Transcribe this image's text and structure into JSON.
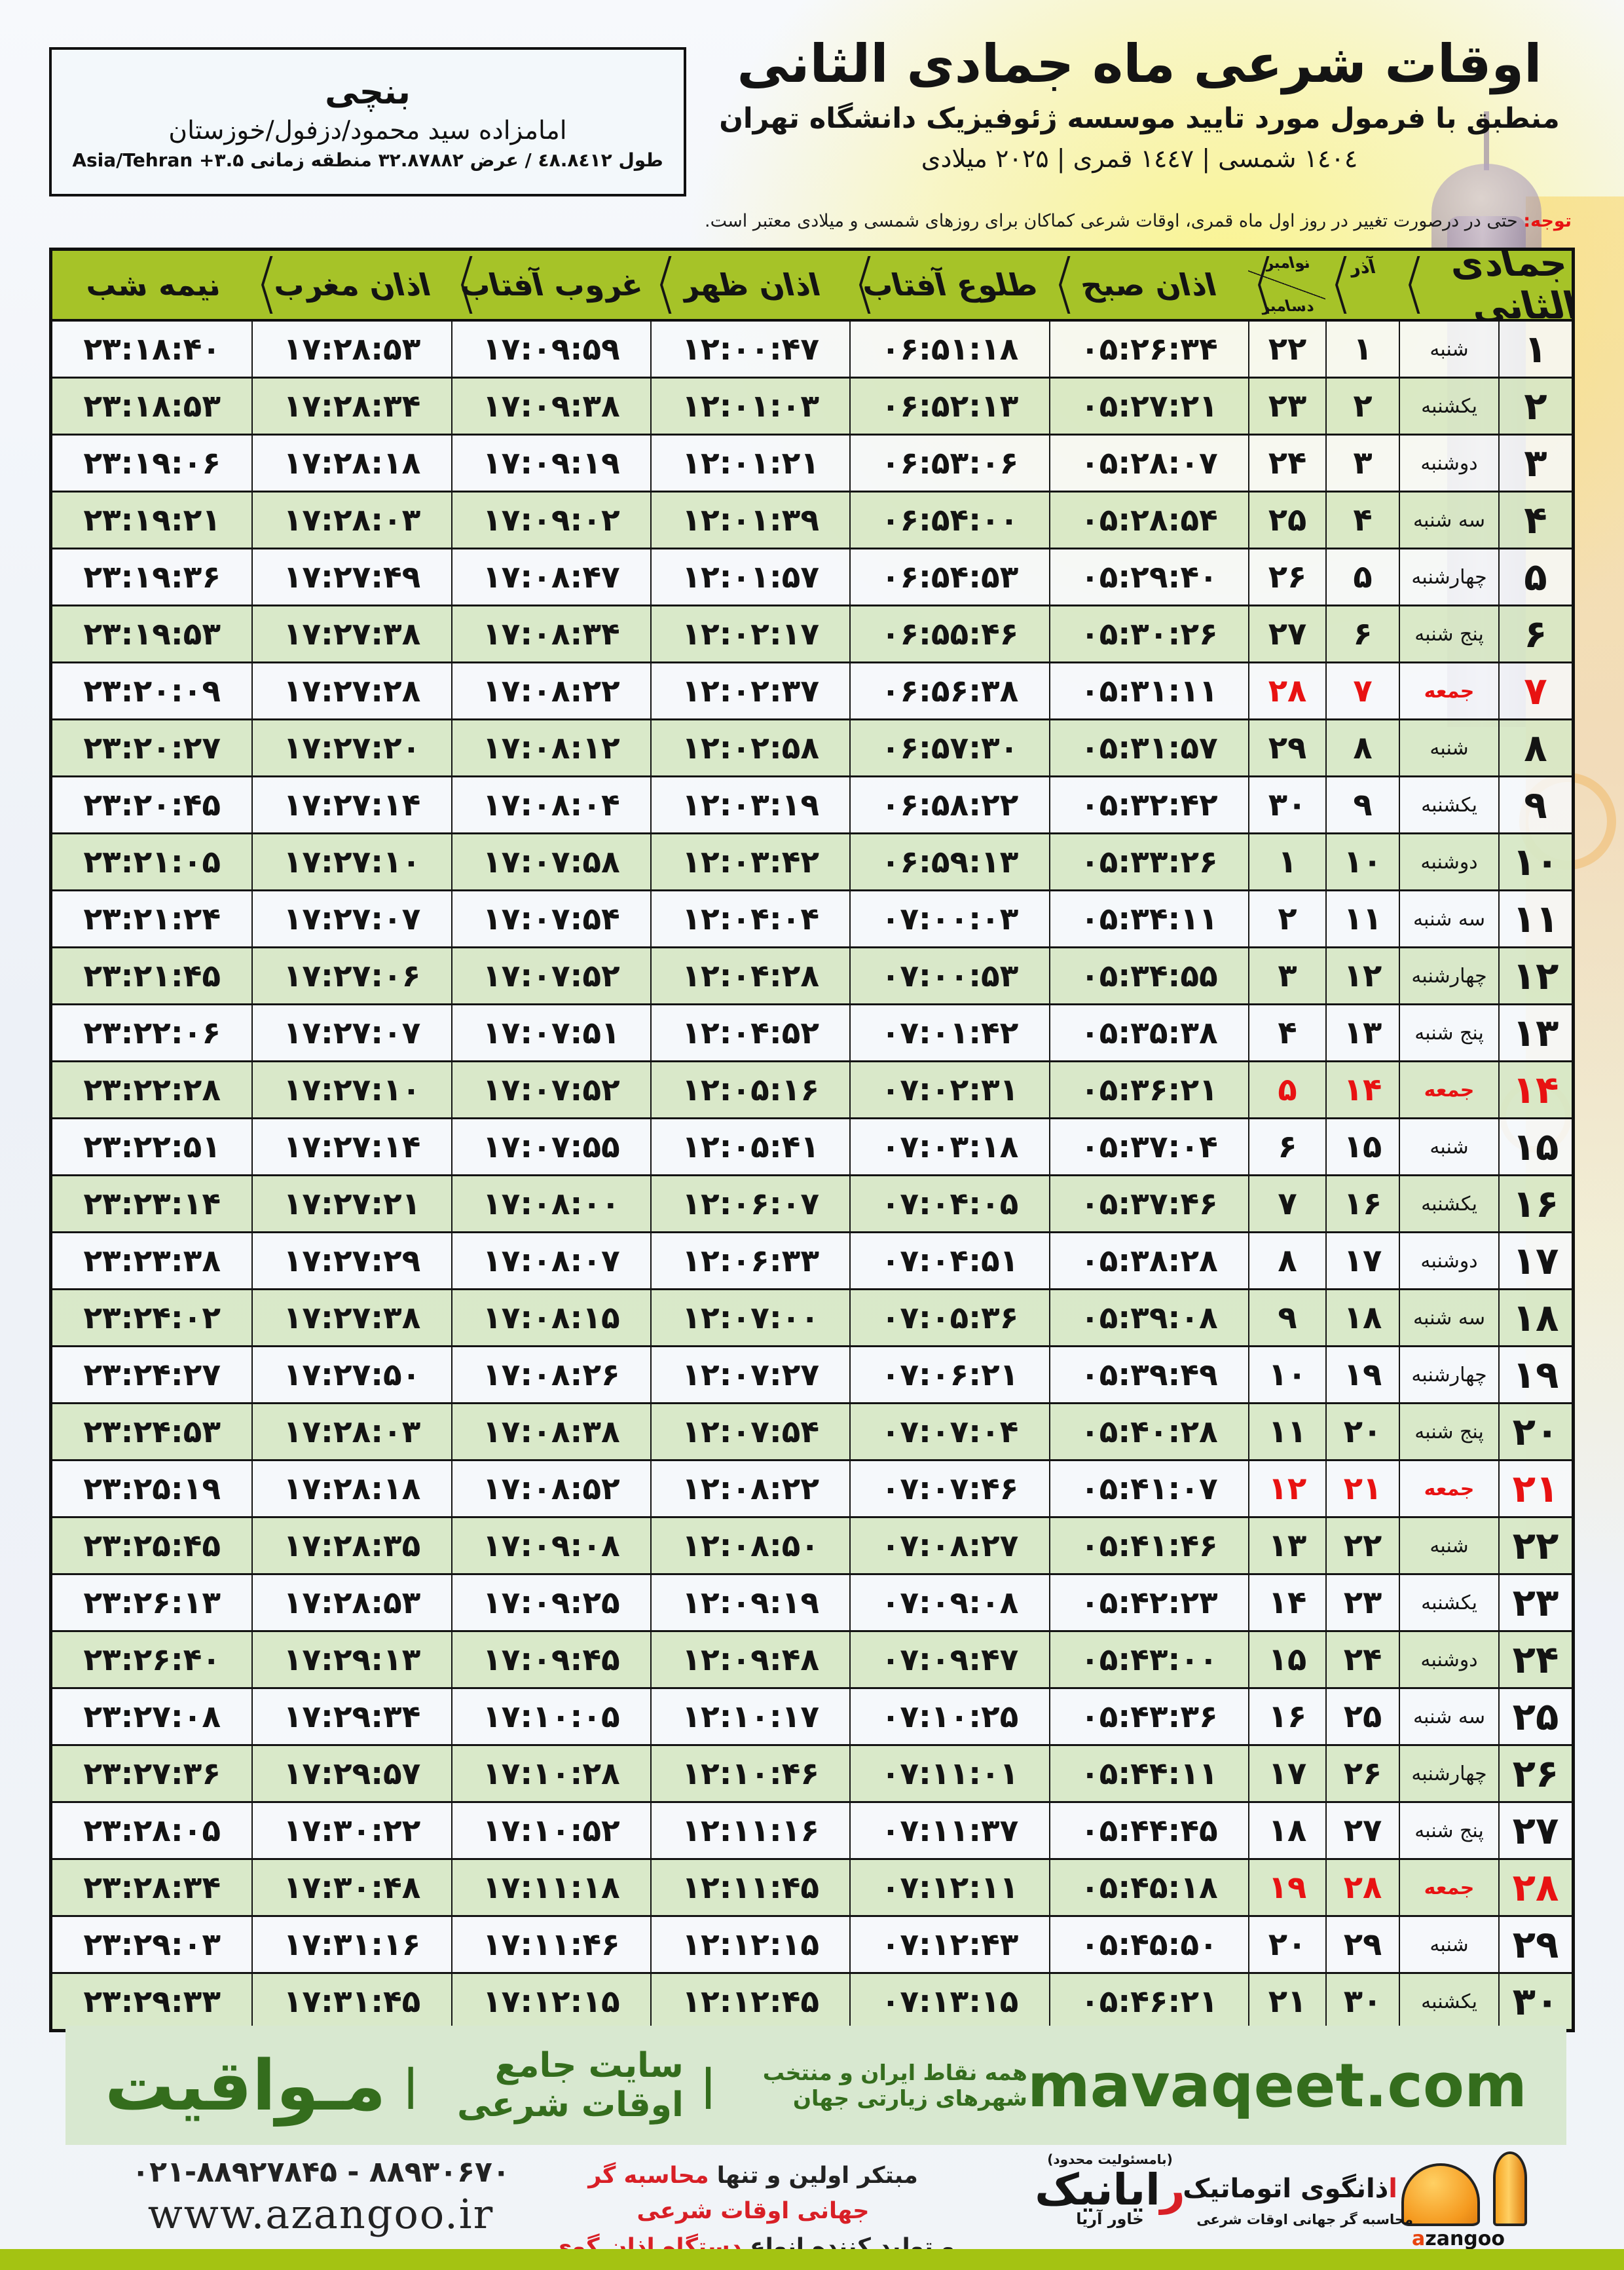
{
  "header": {
    "title": "اوقات شرعی ماه جمادی الثانی",
    "subtitle": "منطبق با فرمول مورد تایید موسسه ژئوفیزیک دانشگاه تهران",
    "years": "١٤٠٤ شمسی | ١٤٤٧ قمری | ۲۰۲۵ میلادی",
    "location": {
      "name": "بنچی",
      "shrine": "امامزاده سید محمود/دزفول/خوزستان",
      "coords_rtl": "طول ٤٨.٨٤١٢ / عرض ۳۲.۸۷۸۸۲ منطقه زمانی",
      "coords_ltr": "Asia/Tehran +۳.۵"
    }
  },
  "notice": {
    "label": "توجه:",
    "text": " حتی در درصورت تغییر در روز اول ماه قمری، اوقات شرعی کماکان برای روزهای شمسی و میلادی معتبر است."
  },
  "table": {
    "headers": {
      "month": "جمادی الثانی",
      "azar": "آذر",
      "nov": "نوامبر",
      "dec": "دسامبر",
      "fajr": "اذان صبح",
      "sunrise": "طلوع آفتاب",
      "dhuhr": "اذان ظهر",
      "sunset": "غروب آفتاب",
      "maghrib": "اذان مغرب",
      "midnight": "نیمه شب"
    },
    "rows": [
      {
        "day": "۱",
        "weekday": "شنبه",
        "azar": "۱",
        "nov": "۲۲",
        "fajr": "۰۵:۲۶:۳۴",
        "sunrise": "۰۶:۵۱:۱۸",
        "dhuhr": "۱۲:۰۰:۴۷",
        "sunset": "۱۷:۰۹:۵۹",
        "maghrib": "۱۷:۲۸:۵۳",
        "midnight": "۲۳:۱۸:۴۰",
        "friday": false
      },
      {
        "day": "۲",
        "weekday": "یکشنبه",
        "azar": "۲",
        "nov": "۲۳",
        "fajr": "۰۵:۲۷:۲۱",
        "sunrise": "۰۶:۵۲:۱۳",
        "dhuhr": "۱۲:۰۱:۰۳",
        "sunset": "۱۷:۰۹:۳۸",
        "maghrib": "۱۷:۲۸:۳۴",
        "midnight": "۲۳:۱۸:۵۳",
        "friday": false
      },
      {
        "day": "۳",
        "weekday": "دوشنبه",
        "azar": "۳",
        "nov": "۲۴",
        "fajr": "۰۵:۲۸:۰۷",
        "sunrise": "۰۶:۵۳:۰۶",
        "dhuhr": "۱۲:۰۱:۲۱",
        "sunset": "۱۷:۰۹:۱۹",
        "maghrib": "۱۷:۲۸:۱۸",
        "midnight": "۲۳:۱۹:۰۶",
        "friday": false
      },
      {
        "day": "۴",
        "weekday": "سه شنبه",
        "azar": "۴",
        "nov": "۲۵",
        "fajr": "۰۵:۲۸:۵۴",
        "sunrise": "۰۶:۵۴:۰۰",
        "dhuhr": "۱۲:۰۱:۳۹",
        "sunset": "۱۷:۰۹:۰۲",
        "maghrib": "۱۷:۲۸:۰۳",
        "midnight": "۲۳:۱۹:۲۱",
        "friday": false
      },
      {
        "day": "۵",
        "weekday": "چهارشنبه",
        "azar": "۵",
        "nov": "۲۶",
        "fajr": "۰۵:۲۹:۴۰",
        "sunrise": "۰۶:۵۴:۵۳",
        "dhuhr": "۱۲:۰۱:۵۷",
        "sunset": "۱۷:۰۸:۴۷",
        "maghrib": "۱۷:۲۷:۴۹",
        "midnight": "۲۳:۱۹:۳۶",
        "friday": false
      },
      {
        "day": "۶",
        "weekday": "پنج شنبه",
        "azar": "۶",
        "nov": "۲۷",
        "fajr": "۰۵:۳۰:۲۶",
        "sunrise": "۰۶:۵۵:۴۶",
        "dhuhr": "۱۲:۰۲:۱۷",
        "sunset": "۱۷:۰۸:۳۴",
        "maghrib": "۱۷:۲۷:۳۸",
        "midnight": "۲۳:۱۹:۵۳",
        "friday": false
      },
      {
        "day": "۷",
        "weekday": "جمعه",
        "azar": "۷",
        "nov": "۲۸",
        "fajr": "۰۵:۳۱:۱۱",
        "sunrise": "۰۶:۵۶:۳۸",
        "dhuhr": "۱۲:۰۲:۳۷",
        "sunset": "۱۷:۰۸:۲۲",
        "maghrib": "۱۷:۲۷:۲۸",
        "midnight": "۲۳:۲۰:۰۹",
        "friday": true
      },
      {
        "day": "۸",
        "weekday": "شنبه",
        "azar": "۸",
        "nov": "۲۹",
        "fajr": "۰۵:۳۱:۵۷",
        "sunrise": "۰۶:۵۷:۳۰",
        "dhuhr": "۱۲:۰۲:۵۸",
        "sunset": "۱۷:۰۸:۱۲",
        "maghrib": "۱۷:۲۷:۲۰",
        "midnight": "۲۳:۲۰:۲۷",
        "friday": false
      },
      {
        "day": "۹",
        "weekday": "یکشنبه",
        "azar": "۹",
        "nov": "۳۰",
        "fajr": "۰۵:۳۲:۴۲",
        "sunrise": "۰۶:۵۸:۲۲",
        "dhuhr": "۱۲:۰۳:۱۹",
        "sunset": "۱۷:۰۸:۰۴",
        "maghrib": "۱۷:۲۷:۱۴",
        "midnight": "۲۳:۲۰:۴۵",
        "friday": false
      },
      {
        "day": "۱۰",
        "weekday": "دوشنبه",
        "azar": "۱۰",
        "nov": "۱",
        "fajr": "۰۵:۳۳:۲۶",
        "sunrise": "۰۶:۵۹:۱۳",
        "dhuhr": "۱۲:۰۳:۴۲",
        "sunset": "۱۷:۰۷:۵۸",
        "maghrib": "۱۷:۲۷:۱۰",
        "midnight": "۲۳:۲۱:۰۵",
        "friday": false
      },
      {
        "day": "۱۱",
        "weekday": "سه شنبه",
        "azar": "۱۱",
        "nov": "۲",
        "fajr": "۰۵:۳۴:۱۱",
        "sunrise": "۰۷:۰۰:۰۳",
        "dhuhr": "۱۲:۰۴:۰۴",
        "sunset": "۱۷:۰۷:۵۴",
        "maghrib": "۱۷:۲۷:۰۷",
        "midnight": "۲۳:۲۱:۲۴",
        "friday": false
      },
      {
        "day": "۱۲",
        "weekday": "چهارشنبه",
        "azar": "۱۲",
        "nov": "۳",
        "fajr": "۰۵:۳۴:۵۵",
        "sunrise": "۰۷:۰۰:۵۳",
        "dhuhr": "۱۲:۰۴:۲۸",
        "sunset": "۱۷:۰۷:۵۲",
        "maghrib": "۱۷:۲۷:۰۶",
        "midnight": "۲۳:۲۱:۴۵",
        "friday": false
      },
      {
        "day": "۱۳",
        "weekday": "پنج شنبه",
        "azar": "۱۳",
        "nov": "۴",
        "fajr": "۰۵:۳۵:۳۸",
        "sunrise": "۰۷:۰۱:۴۲",
        "dhuhr": "۱۲:۰۴:۵۲",
        "sunset": "۱۷:۰۷:۵۱",
        "maghrib": "۱۷:۲۷:۰۷",
        "midnight": "۲۳:۲۲:۰۶",
        "friday": false
      },
      {
        "day": "۱۴",
        "weekday": "جمعه",
        "azar": "۱۴",
        "nov": "۵",
        "fajr": "۰۵:۳۶:۲۱",
        "sunrise": "۰۷:۰۲:۳۱",
        "dhuhr": "۱۲:۰۵:۱۶",
        "sunset": "۱۷:۰۷:۵۲",
        "maghrib": "۱۷:۲۷:۱۰",
        "midnight": "۲۳:۲۲:۲۸",
        "friday": true
      },
      {
        "day": "۱۵",
        "weekday": "شنبه",
        "azar": "۱۵",
        "nov": "۶",
        "fajr": "۰۵:۳۷:۰۴",
        "sunrise": "۰۷:۰۳:۱۸",
        "dhuhr": "۱۲:۰۵:۴۱",
        "sunset": "۱۷:۰۷:۵۵",
        "maghrib": "۱۷:۲۷:۱۴",
        "midnight": "۲۳:۲۲:۵۱",
        "friday": false
      },
      {
        "day": "۱۶",
        "weekday": "یکشنبه",
        "azar": "۱۶",
        "nov": "۷",
        "fajr": "۰۵:۳۷:۴۶",
        "sunrise": "۰۷:۰۴:۰۵",
        "dhuhr": "۱۲:۰۶:۰۷",
        "sunset": "۱۷:۰۸:۰۰",
        "maghrib": "۱۷:۲۷:۲۱",
        "midnight": "۲۳:۲۳:۱۴",
        "friday": false
      },
      {
        "day": "۱۷",
        "weekday": "دوشنبه",
        "azar": "۱۷",
        "nov": "۸",
        "fajr": "۰۵:۳۸:۲۸",
        "sunrise": "۰۷:۰۴:۵۱",
        "dhuhr": "۱۲:۰۶:۳۳",
        "sunset": "۱۷:۰۸:۰۷",
        "maghrib": "۱۷:۲۷:۲۹",
        "midnight": "۲۳:۲۳:۳۸",
        "friday": false
      },
      {
        "day": "۱۸",
        "weekday": "سه شنبه",
        "azar": "۱۸",
        "nov": "۹",
        "fajr": "۰۵:۳۹:۰۸",
        "sunrise": "۰۷:۰۵:۳۶",
        "dhuhr": "۱۲:۰۷:۰۰",
        "sunset": "۱۷:۰۸:۱۵",
        "maghrib": "۱۷:۲۷:۳۸",
        "midnight": "۲۳:۲۴:۰۲",
        "friday": false
      },
      {
        "day": "۱۹",
        "weekday": "چهارشنبه",
        "azar": "۱۹",
        "nov": "۱۰",
        "fajr": "۰۵:۳۹:۴۹",
        "sunrise": "۰۷:۰۶:۲۱",
        "dhuhr": "۱۲:۰۷:۲۷",
        "sunset": "۱۷:۰۸:۲۶",
        "maghrib": "۱۷:۲۷:۵۰",
        "midnight": "۲۳:۲۴:۲۷",
        "friday": false
      },
      {
        "day": "۲۰",
        "weekday": "پنج شنبه",
        "azar": "۲۰",
        "nov": "۱۱",
        "fajr": "۰۵:۴۰:۲۸",
        "sunrise": "۰۷:۰۷:۰۴",
        "dhuhr": "۱۲:۰۷:۵۴",
        "sunset": "۱۷:۰۸:۳۸",
        "maghrib": "۱۷:۲۸:۰۳",
        "midnight": "۲۳:۲۴:۵۳",
        "friday": false
      },
      {
        "day": "۲۱",
        "weekday": "جمعه",
        "azar": "۲۱",
        "nov": "۱۲",
        "fajr": "۰۵:۴۱:۰۷",
        "sunrise": "۰۷:۰۷:۴۶",
        "dhuhr": "۱۲:۰۸:۲۲",
        "sunset": "۱۷:۰۸:۵۲",
        "maghrib": "۱۷:۲۸:۱۸",
        "midnight": "۲۳:۲۵:۱۹",
        "friday": true
      },
      {
        "day": "۲۲",
        "weekday": "شنبه",
        "azar": "۲۲",
        "nov": "۱۳",
        "fajr": "۰۵:۴۱:۴۶",
        "sunrise": "۰۷:۰۸:۲۷",
        "dhuhr": "۱۲:۰۸:۵۰",
        "sunset": "۱۷:۰۹:۰۸",
        "maghrib": "۱۷:۲۸:۳۵",
        "midnight": "۲۳:۲۵:۴۵",
        "friday": false
      },
      {
        "day": "۲۳",
        "weekday": "یکشنبه",
        "azar": "۲۳",
        "nov": "۱۴",
        "fajr": "۰۵:۴۲:۲۳",
        "sunrise": "۰۷:۰۹:۰۸",
        "dhuhr": "۱۲:۰۹:۱۹",
        "sunset": "۱۷:۰۹:۲۵",
        "maghrib": "۱۷:۲۸:۵۳",
        "midnight": "۲۳:۲۶:۱۳",
        "friday": false
      },
      {
        "day": "۲۴",
        "weekday": "دوشنبه",
        "azar": "۲۴",
        "nov": "۱۵",
        "fajr": "۰۵:۴۳:۰۰",
        "sunrise": "۰۷:۰۹:۴۷",
        "dhuhr": "۱۲:۰۹:۴۸",
        "sunset": "۱۷:۰۹:۴۵",
        "maghrib": "۱۷:۲۹:۱۳",
        "midnight": "۲۳:۲۶:۴۰",
        "friday": false
      },
      {
        "day": "۲۵",
        "weekday": "سه شنبه",
        "azar": "۲۵",
        "nov": "۱۶",
        "fajr": "۰۵:۴۳:۳۶",
        "sunrise": "۰۷:۱۰:۲۵",
        "dhuhr": "۱۲:۱۰:۱۷",
        "sunset": "۱۷:۱۰:۰۵",
        "maghrib": "۱۷:۲۹:۳۴",
        "midnight": "۲۳:۲۷:۰۸",
        "friday": false
      },
      {
        "day": "۲۶",
        "weekday": "چهارشنبه",
        "azar": "۲۶",
        "nov": "۱۷",
        "fajr": "۰۵:۴۴:۱۱",
        "sunrise": "۰۷:۱۱:۰۱",
        "dhuhr": "۱۲:۱۰:۴۶",
        "sunset": "۱۷:۱۰:۲۸",
        "maghrib": "۱۷:۲۹:۵۷",
        "midnight": "۲۳:۲۷:۳۶",
        "friday": false
      },
      {
        "day": "۲۷",
        "weekday": "پنج شنبه",
        "azar": "۲۷",
        "nov": "۱۸",
        "fajr": "۰۵:۴۴:۴۵",
        "sunrise": "۰۷:۱۱:۳۷",
        "dhuhr": "۱۲:۱۱:۱۶",
        "sunset": "۱۷:۱۰:۵۲",
        "maghrib": "۱۷:۳۰:۲۲",
        "midnight": "۲۳:۲۸:۰۵",
        "friday": false
      },
      {
        "day": "۲۸",
        "weekday": "جمعه",
        "azar": "۲۸",
        "nov": "۱۹",
        "fajr": "۰۵:۴۵:۱۸",
        "sunrise": "۰۷:۱۲:۱۱",
        "dhuhr": "۱۲:۱۱:۴۵",
        "sunset": "۱۷:۱۱:۱۸",
        "maghrib": "۱۷:۳۰:۴۸",
        "midnight": "۲۳:۲۸:۳۴",
        "friday": true
      },
      {
        "day": "۲۹",
        "weekday": "شنبه",
        "azar": "۲۹",
        "nov": "۲۰",
        "fajr": "۰۵:۴۵:۵۰",
        "sunrise": "۰۷:۱۲:۴۳",
        "dhuhr": "۱۲:۱۲:۱۵",
        "sunset": "۱۷:۱۱:۴۶",
        "maghrib": "۱۷:۳۱:۱۶",
        "midnight": "۲۳:۲۹:۰۳",
        "friday": false
      },
      {
        "day": "۳۰",
        "weekday": "یکشنبه",
        "azar": "۳۰",
        "nov": "۲۱",
        "fajr": "۰۵:۴۶:۲۱",
        "sunrise": "۰۷:۱۳:۱۵",
        "dhuhr": "۱۲:۱۲:۴۵",
        "sunset": "۱۷:۱۲:۱۵",
        "maghrib": "۱۷:۳۱:۴۵",
        "midnight": "۲۳:۲۹:۳۳",
        "friday": false
      }
    ]
  },
  "footer": {
    "mavaqeet": {
      "site": "mavaqeet.com",
      "brand": "مـواقیت",
      "sep": "|",
      "tagline1": "سایت جامع اوقات شرعی",
      "tagline2": "همه نقاط ایران و منتخب شهرهای زیارتی جهان"
    },
    "contact": {
      "phones": "۰۲۱-۸۸۹۲۷۸۴۵ - ۸۸۹۳۰۶۷۰",
      "site": "www.azangoo.ir"
    },
    "slogan": {
      "line1_black": "مبتکر اولین و تنها ",
      "line1_red": "محاسبه گر جهانی اوقات شرعی",
      "line2_black": "و تولید کننده انواع ",
      "line2_red": "دستگاه اذان گوی تمام خودکار ماهواره ای"
    },
    "rayanik": {
      "responsibility": "(بامسئولیت محدود)",
      "name_initial": "ر",
      "name_rest": "ایانیک",
      "sub": "خاور آریا"
    },
    "azangoo": {
      "title_initial": "ا",
      "title_rest": "ذانگوی اتوماتیک",
      "subtitle": "محاسبه گر جهانی اوقات شرعی",
      "latin_a": "a",
      "latin_rest": "zangoo"
    }
  },
  "colors": {
    "header_green": "#a6c328",
    "row_green": "#d7e7c4",
    "accent_red": "#e81212",
    "footer_band": "#d8e8d0",
    "footer_text_green": "#346d1d",
    "bottom_bar": "#a4c312"
  }
}
